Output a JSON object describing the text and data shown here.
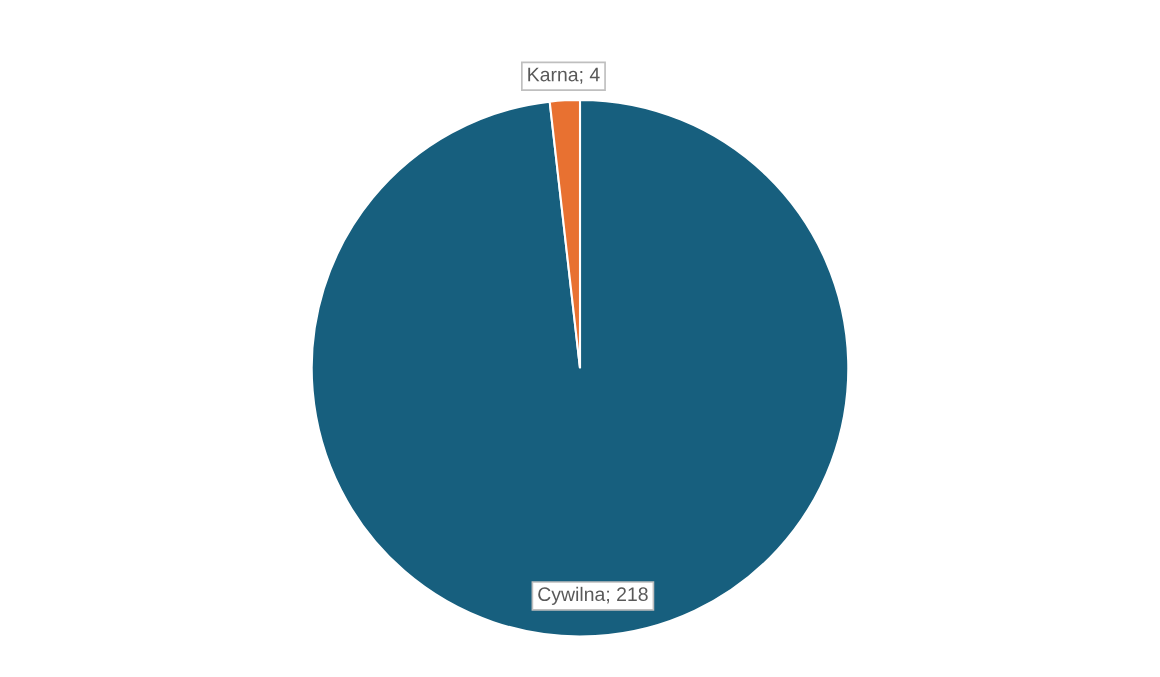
{
  "chart_data": {
    "type": "pie",
    "categories": [
      "Cywilna",
      "Karna"
    ],
    "values": [
      218,
      4
    ],
    "colors": [
      "#175f7e",
      "#e87131"
    ],
    "value_labels": [
      "; 218",
      "; 4"
    ]
  }
}
